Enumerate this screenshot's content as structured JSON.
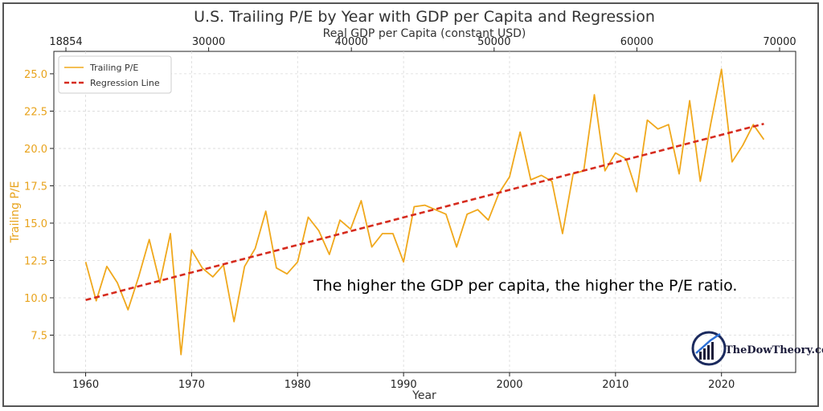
{
  "chart_data": {
    "type": "line",
    "title": "U.S. Trailing P/E by Year with GDP per Capita and Regression",
    "xlabel": "Year",
    "ylabel": "Trailing P/E",
    "secondary_xlabel": "Real GDP per Capita (constant USD)",
    "secondary_xticks": [
      "18854",
      "30000",
      "40000",
      "50000",
      "60000",
      "70000"
    ],
    "xticks": [
      "1960",
      "1970",
      "1980",
      "1990",
      "2000",
      "2010",
      "2020"
    ],
    "yticks": [
      "7.5",
      "10.0",
      "12.5",
      "15.0",
      "17.5",
      "20.0",
      "22.5",
      "25.0"
    ],
    "xlim": [
      1957,
      2027
    ],
    "ylim": [
      5.0,
      26.5
    ],
    "grid": true,
    "legend_position": "top-left",
    "x": [
      1960,
      1961,
      1962,
      1963,
      1964,
      1965,
      1966,
      1967,
      1968,
      1969,
      1970,
      1971,
      1972,
      1973,
      1974,
      1975,
      1976,
      1977,
      1978,
      1979,
      1980,
      1981,
      1982,
      1983,
      1984,
      1985,
      1986,
      1987,
      1988,
      1989,
      1990,
      1991,
      1992,
      1993,
      1994,
      1995,
      1996,
      1997,
      1998,
      1999,
      2000,
      2001,
      2002,
      2003,
      2004,
      2005,
      2006,
      2007,
      2008,
      2009,
      2010,
      2011,
      2012,
      2013,
      2014,
      2015,
      2016,
      2017,
      2018,
      2019,
      2020,
      2021,
      2022,
      2023,
      2024
    ],
    "series": [
      {
        "name": "Trailing P/E",
        "color": "#f0a81c",
        "style": "solid",
        "values": [
          12.4,
          9.8,
          12.1,
          11.0,
          9.2,
          11.4,
          13.9,
          11.0,
          14.3,
          6.2,
          13.2,
          12.0,
          11.4,
          12.2,
          8.4,
          12.1,
          13.3,
          15.8,
          12.0,
          11.6,
          12.4,
          15.4,
          14.5,
          12.9,
          15.2,
          14.6,
          16.5,
          13.4,
          14.3,
          14.3,
          12.4,
          16.1,
          16.2,
          15.9,
          15.6,
          13.4,
          15.6,
          15.9,
          15.2,
          17.0,
          18.1,
          21.1,
          17.9,
          18.2,
          17.8,
          14.3,
          18.3,
          18.5,
          23.6,
          18.5,
          19.7,
          19.3,
          17.1,
          21.9,
          21.3,
          21.6,
          18.3,
          23.2,
          17.8,
          21.7,
          25.3,
          19.1,
          20.2,
          21.6,
          20.6
        ]
      },
      {
        "name": "Regression Line",
        "color": "#d62b1e",
        "style": "dashed",
        "x": [
          1960,
          2024
        ],
        "values": [
          9.85,
          21.65
        ]
      }
    ]
  },
  "annotation": "The higher the GDP per capita, the higher the P/E ratio.",
  "logo_text": "TheDowTheory.com"
}
